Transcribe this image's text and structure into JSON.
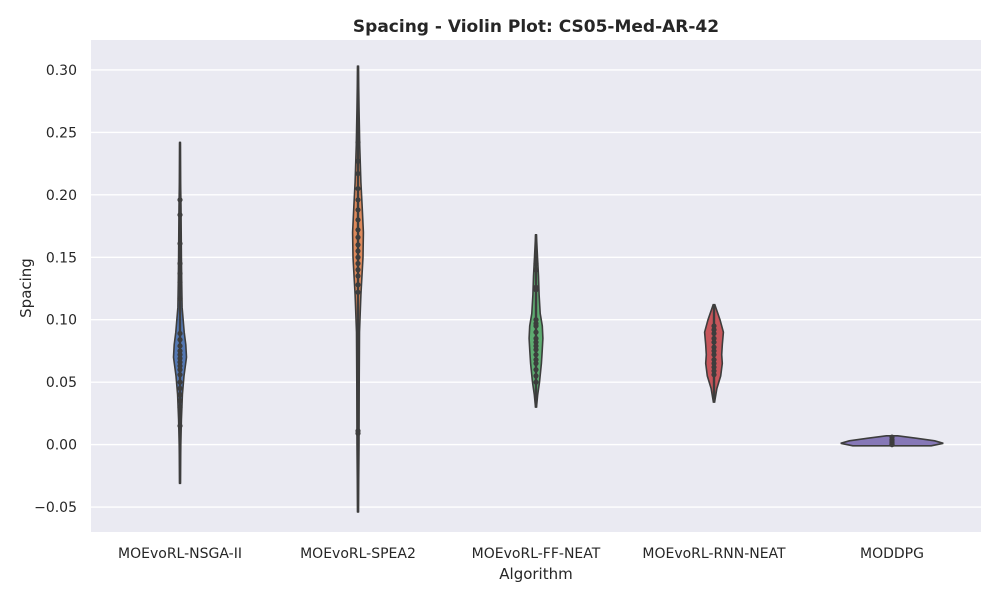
{
  "chart_data": {
    "type": "violin",
    "title": "Spacing - Violin Plot: CS05-Med-AR-42",
    "xlabel": "Algorithm",
    "ylabel": "Spacing",
    "ylim": [
      -0.07,
      0.324
    ],
    "yticks": [
      -0.05,
      0.0,
      0.05,
      0.1,
      0.15,
      0.2,
      0.25,
      0.3
    ],
    "ytick_labels": [
      "−0.05",
      "0.00",
      "0.05",
      "0.10",
      "0.15",
      "0.20",
      "0.25",
      "0.30"
    ],
    "grid": true,
    "categories": [
      "MOEvoRL-NSGA-II",
      "MOEvoRL-SPEA2",
      "MOEvoRL-FF-NEAT",
      "MOEvoRL-RNN-NEAT",
      "MODDPG"
    ],
    "series": [
      {
        "category": "MOEvoRL-NSGA-II",
        "color": "#4c72b0",
        "points": [
          0.196,
          0.184,
          0.161,
          0.145,
          0.137,
          0.13,
          0.117,
          0.089,
          0.084,
          0.079,
          0.075,
          0.072,
          0.069,
          0.066,
          0.063,
          0.06,
          0.056,
          0.05,
          0.045,
          0.04,
          0.035,
          0.03,
          0.015
        ],
        "kde_range": [
          -0.031,
          0.242
        ],
        "profile": [
          [
            -0.031,
            0.4
          ],
          [
            0.0,
            0.8
          ],
          [
            0.02,
            1.5
          ],
          [
            0.04,
            2.5
          ],
          [
            0.055,
            4.2
          ],
          [
            0.07,
            6.8
          ],
          [
            0.08,
            6.0
          ],
          [
            0.09,
            4.4
          ],
          [
            0.11,
            2.2
          ],
          [
            0.13,
            1.8
          ],
          [
            0.15,
            1.5
          ],
          [
            0.17,
            1.2
          ],
          [
            0.19,
            1.0
          ],
          [
            0.21,
            0.6
          ],
          [
            0.242,
            0.3
          ]
        ]
      },
      {
        "category": "MOEvoRL-SPEA2",
        "color": "#dd8452",
        "points": [
          0.242,
          0.227,
          0.217,
          0.205,
          0.196,
          0.188,
          0.18,
          0.172,
          0.166,
          0.16,
          0.155,
          0.15,
          0.145,
          0.14,
          0.135,
          0.128,
          0.122,
          0.011,
          0.009
        ],
        "kde_range": [
          -0.054,
          0.303
        ],
        "profile": [
          [
            -0.054,
            0.4
          ],
          [
            0.0,
            1.0
          ],
          [
            0.05,
            1.2
          ],
          [
            0.09,
            1.6
          ],
          [
            0.12,
            3.0
          ],
          [
            0.15,
            5.2
          ],
          [
            0.17,
            5.6
          ],
          [
            0.19,
            4.4
          ],
          [
            0.21,
            3.0
          ],
          [
            0.24,
            1.8
          ],
          [
            0.27,
            1.0
          ],
          [
            0.303,
            0.4
          ]
        ]
      },
      {
        "category": "MOEvoRL-FF-NEAT",
        "color": "#55a868",
        "points": [
          0.145,
          0.14,
          0.126,
          0.124,
          0.1,
          0.097,
          0.095,
          0.09,
          0.085,
          0.082,
          0.079,
          0.076,
          0.072,
          0.068,
          0.065,
          0.06,
          0.055,
          0.05
        ],
        "kde_range": [
          0.03,
          0.168
        ],
        "profile": [
          [
            0.03,
            0.5
          ],
          [
            0.04,
            1.8
          ],
          [
            0.05,
            3.6
          ],
          [
            0.065,
            5.6
          ],
          [
            0.075,
            6.4
          ],
          [
            0.085,
            7.2
          ],
          [
            0.095,
            6.6
          ],
          [
            0.105,
            4.4
          ],
          [
            0.12,
            3.2
          ],
          [
            0.135,
            2.6
          ],
          [
            0.15,
            1.6
          ],
          [
            0.168,
            0.4
          ]
        ]
      },
      {
        "category": "MOEvoRL-RNN-NEAT",
        "color": "#c44e52",
        "points": [
          0.095,
          0.092,
          0.089,
          0.085,
          0.082,
          0.078,
          0.075,
          0.072,
          0.068,
          0.065,
          0.062,
          0.059,
          0.056
        ],
        "kde_range": [
          0.034,
          0.112
        ],
        "profile": [
          [
            0.034,
            0.6
          ],
          [
            0.045,
            3.0
          ],
          [
            0.055,
            7.0
          ],
          [
            0.065,
            8.6
          ],
          [
            0.072,
            8.0
          ],
          [
            0.08,
            8.6
          ],
          [
            0.09,
            9.8
          ],
          [
            0.1,
            6.2
          ],
          [
            0.112,
            0.8
          ]
        ]
      },
      {
        "category": "MODDPG",
        "color": "#8172b3",
        "points": [
          0.006,
          0.004,
          0.003,
          0.002,
          0.001,
          0.0,
          0.0
        ],
        "kde_range": [
          -0.001,
          0.007
        ],
        "profile": [
          [
            -0.001,
            55
          ],
          [
            0.001,
            72
          ],
          [
            0.003,
            60
          ],
          [
            0.005,
            35
          ],
          [
            0.007,
            8
          ]
        ]
      }
    ]
  }
}
